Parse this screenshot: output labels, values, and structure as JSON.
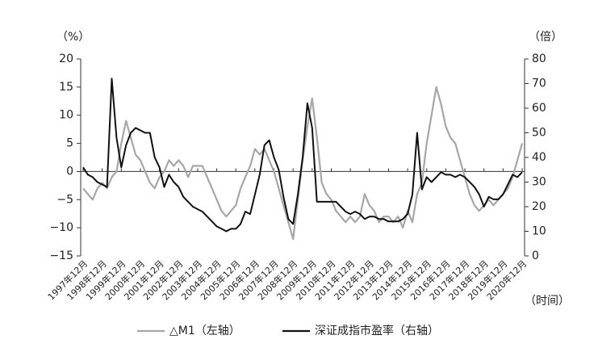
{
  "chart_data": {
    "type": "line",
    "y_unit_label": "（%）",
    "y2_unit_label": "（倍）",
    "x_unit_label": "（时间）",
    "x": [
      "1997年12月",
      "1998年3月",
      "1998年6月",
      "1998年9月",
      "1998年12月",
      "1999年3月",
      "1999年6月",
      "1999年9月",
      "1999年12月",
      "2000年3月",
      "2000年6月",
      "2000年9月",
      "2000年12月",
      "2001年3月",
      "2001年6月",
      "2001年9月",
      "2001年12月",
      "2002年3月",
      "2002年6月",
      "2002年9月",
      "2002年12月",
      "2003年3月",
      "2003年6月",
      "2003年9月",
      "2003年12月",
      "2004年3月",
      "2004年6月",
      "2004年9月",
      "2004年12月",
      "2005年3月",
      "2005年6月",
      "2005年9月",
      "2005年12月",
      "2006年3月",
      "2006年6月",
      "2006年9月",
      "2006年12月",
      "2007年3月",
      "2007年6月",
      "2007年9月",
      "2007年12月",
      "2008年3月",
      "2008年6月",
      "2008年9月",
      "2008年12月",
      "2009年3月",
      "2009年6月",
      "2009年9月",
      "2009年12月",
      "2010年3月",
      "2010年6月",
      "2010年9月",
      "2010年12月",
      "2011年3月",
      "2011年6月",
      "2011年9月",
      "2011年12月",
      "2012年3月",
      "2012年6月",
      "2012年9月",
      "2012年12月",
      "2013年3月",
      "2013年6月",
      "2013年9月",
      "2013年12月",
      "2014年3月",
      "2014年6月",
      "2014年9月",
      "2014年12月",
      "2015年3月",
      "2015年6月",
      "2015年9月",
      "2015年12月",
      "2016年3月",
      "2016年6月",
      "2016年9月",
      "2016年12月",
      "2017年3月",
      "2017年6月",
      "2017年9月",
      "2017年12月",
      "2018年3月",
      "2018年6月",
      "2018年9月",
      "2018年12月",
      "2019年3月",
      "2019年6月",
      "2019年9月",
      "2019年12月",
      "2020年3月",
      "2020年6月",
      "2020年9月",
      "2020年12月"
    ],
    "xticks": [
      "1997年12月",
      "1998年12月",
      "1999年12月",
      "2000年12月",
      "2001年12月",
      "2002年12月",
      "2003年12月",
      "2004年12月",
      "2005年12月",
      "2006年12月",
      "2007年12月",
      "2008年12月",
      "2009年12月",
      "2010年12月",
      "2011年12月",
      "2012年12月",
      "2013年12月",
      "2014年12月",
      "2015年12月",
      "2016年12月",
      "2017年12月",
      "2018年12月",
      "2019年12月",
      "2020年12月"
    ],
    "series": [
      {
        "name": "△M1（左轴）",
        "color": "#a6a6a6",
        "axis": "y",
        "values": [
          -3,
          -4,
          -5,
          -3,
          -2,
          -3,
          -1,
          0,
          5,
          9,
          6,
          3,
          2,
          0,
          -2,
          -3,
          -1,
          0,
          2,
          1,
          2,
          1,
          -1,
          1,
          1,
          1,
          -1,
          -3,
          -5,
          -7,
          -8,
          -7,
          -6,
          -3,
          -1,
          1,
          4,
          3,
          4,
          2,
          0,
          -3,
          -6,
          -9,
          -12,
          -5,
          2,
          8,
          13,
          6,
          -2,
          -4,
          -5,
          -7,
          -8,
          -9,
          -8,
          -9,
          -8,
          -4,
          -6,
          -7,
          -9,
          -8,
          -8,
          -9,
          -8,
          -10,
          -7,
          -9,
          -4,
          -2,
          5,
          10,
          15,
          12,
          8,
          6,
          5,
          2,
          -1,
          -4,
          -6,
          -7,
          -6,
          -5,
          -6,
          -5,
          -4,
          -3,
          -1,
          2,
          5
        ]
      },
      {
        "name": "深证成指市盈率（右轴）",
        "color": "#111111",
        "axis": "y2",
        "values": [
          36,
          33,
          32,
          30,
          29,
          28,
          72,
          48,
          36,
          45,
          50,
          52,
          51,
          50,
          50,
          40,
          36,
          28,
          33,
          30,
          28,
          24,
          22,
          20,
          19,
          18,
          16,
          14,
          12,
          11,
          10,
          11,
          11,
          13,
          18,
          17,
          25,
          33,
          45,
          47,
          40,
          35,
          24,
          15,
          13,
          25,
          40,
          62,
          52,
          22,
          22,
          22,
          22,
          22,
          20,
          18,
          17,
          18,
          17,
          15,
          16,
          16,
          15,
          15,
          14,
          14,
          14,
          15,
          17,
          25,
          50,
          27,
          32,
          30,
          32,
          34,
          33,
          33,
          32,
          33,
          32,
          30,
          28,
          25,
          20,
          24,
          23,
          23,
          25,
          29,
          33,
          32,
          34
        ]
      }
    ],
    "ylim": [
      -15,
      20
    ],
    "yticks": [
      {
        "value": -15,
        "label": "−15"
      },
      {
        "value": -10,
        "label": "−10"
      },
      {
        "value": -5,
        "label": "−5"
      },
      0,
      5,
      10,
      15,
      20
    ],
    "y2lim": [
      0,
      80
    ],
    "y2ticks": [
      0,
      10,
      20,
      30,
      40,
      50,
      60,
      70,
      80
    ],
    "legend": "bottom"
  }
}
